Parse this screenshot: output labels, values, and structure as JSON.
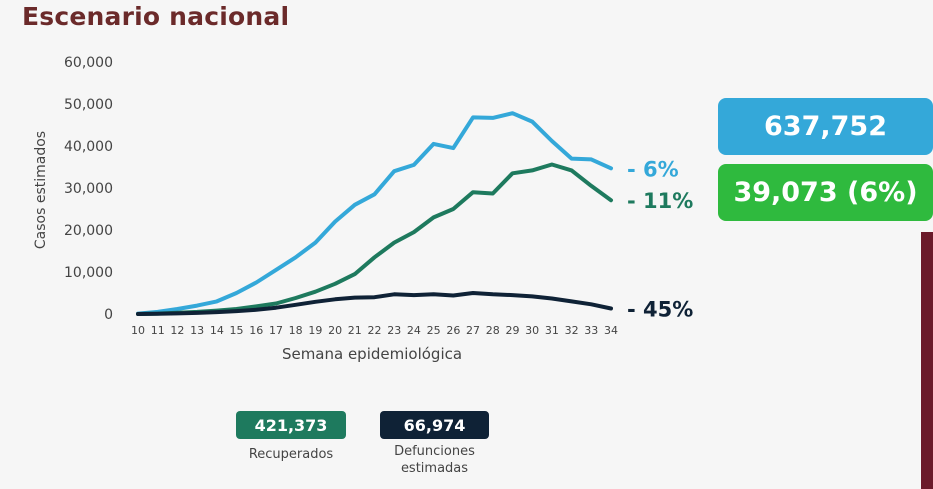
{
  "title": "Escenario nacional",
  "colors": {
    "estimados": "#34a8d9",
    "recuperados": "#1e7a5e",
    "defunciones": "#0f2236",
    "growth_badge": "#2fba3e",
    "total_badge": "#34a8d9"
  },
  "chart_data": {
    "type": "line",
    "xlabel": "Semana epidemiológica",
    "ylabel": "Casos estimados",
    "ylim": [
      0,
      60000
    ],
    "yticks": [
      0,
      10000,
      20000,
      30000,
      40000,
      50000,
      60000
    ],
    "ytick_labels": [
      "0",
      "10,000",
      "20,000",
      "30,000",
      "40,000",
      "50,000",
      "60,000"
    ],
    "x": [
      10,
      11,
      12,
      13,
      14,
      15,
      16,
      17,
      18,
      19,
      20,
      21,
      22,
      23,
      24,
      25,
      26,
      27,
      28,
      29,
      30,
      31,
      32,
      33,
      34
    ],
    "series": [
      {
        "name": "Casos estimados",
        "color_key": "estimados",
        "end_label": "- 6%",
        "values": [
          100,
          500,
          1200,
          2000,
          3000,
          5000,
          7500,
          10500,
          13500,
          17000,
          22000,
          26000,
          28500,
          34000,
          35500,
          40500,
          39500,
          46800,
          46700,
          47800,
          45800,
          41200,
          37000,
          36800,
          34700
        ]
      },
      {
        "name": "Recuperados",
        "color_key": "recuperados",
        "end_label": "- 11%",
        "values": [
          0,
          100,
          300,
          500,
          800,
          1200,
          1800,
          2500,
          3800,
          5300,
          7200,
          9500,
          13500,
          17000,
          19500,
          23000,
          25000,
          29000,
          28700,
          33500,
          34200,
          35600,
          34200,
          30500,
          27100
        ]
      },
      {
        "name": "Defunciones estimadas",
        "color_key": "defunciones",
        "end_label": "- 45%",
        "values": [
          0,
          50,
          150,
          250,
          450,
          700,
          1000,
          1500,
          2200,
          2900,
          3500,
          3900,
          4000,
          4700,
          4500,
          4700,
          4400,
          5000,
          4700,
          4500,
          4200,
          3700,
          3000,
          2300,
          1300
        ]
      }
    ],
    "totals": {
      "casos_estimados": "637,752",
      "incremento": "39,073 (6%)",
      "recuperados": "421,373",
      "recuperados_label": "Recuperados",
      "defunciones": "66,974",
      "defunciones_label": "Defunciones\nestimadas"
    }
  }
}
